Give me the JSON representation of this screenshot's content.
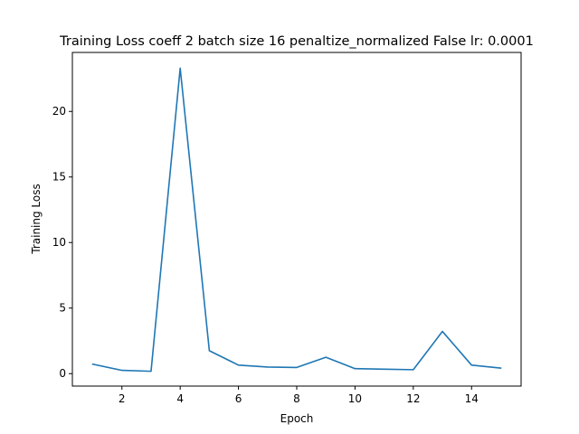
{
  "chart_data": {
    "type": "line",
    "title": "Training Loss coeff 2 batch size 16 penaltize_normalized False lr: 0.0001",
    "xlabel": "Epoch",
    "ylabel": "Training Loss",
    "xlim": [
      0.3,
      15.7
    ],
    "ylim": [
      -0.95,
      24.5
    ],
    "xticks": [
      2,
      4,
      6,
      8,
      10,
      12,
      14
    ],
    "yticks": [
      0,
      5,
      10,
      15,
      20
    ],
    "grid": false,
    "series": [
      {
        "color": "#1f77b4",
        "x": [
          1,
          2,
          3,
          4,
          5,
          6,
          7,
          8,
          9,
          10,
          11,
          12,
          13,
          14,
          15
        ],
        "y": [
          0.72,
          0.25,
          0.18,
          23.3,
          1.75,
          0.65,
          0.5,
          0.47,
          1.25,
          0.38,
          0.34,
          0.3,
          3.22,
          0.65,
          0.42
        ]
      }
    ]
  }
}
